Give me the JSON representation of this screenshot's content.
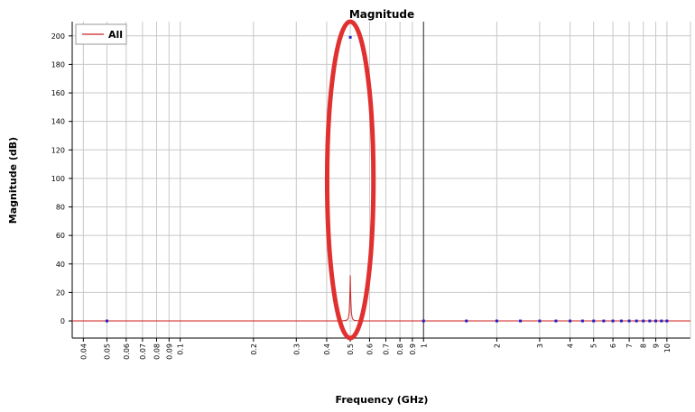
{
  "chart_data": {
    "type": "line",
    "title": "Magnitude",
    "xlabel": "Frequency (GHz)",
    "ylabel": "Magnitude (dB)",
    "x_scale": "log",
    "xlim": [
      0.036,
      12.5
    ],
    "ylim": [
      -12,
      210
    ],
    "x_ticks": [
      {
        "value": 0.04,
        "label": "0.04"
      },
      {
        "value": 0.05,
        "label": "0.05"
      },
      {
        "value": 0.06,
        "label": "0.06"
      },
      {
        "value": 0.07,
        "label": "0.07"
      },
      {
        "value": 0.08,
        "label": "0.08"
      },
      {
        "value": 0.09,
        "label": "0.09"
      },
      {
        "value": 0.1,
        "label": "0.1"
      },
      {
        "value": 0.2,
        "label": "0.2"
      },
      {
        "value": 0.3,
        "label": "0.3"
      },
      {
        "value": 0.4,
        "label": "0.4"
      },
      {
        "value": 0.5,
        "label": "0.5"
      },
      {
        "value": 0.6,
        "label": "0.6"
      },
      {
        "value": 0.7,
        "label": "0.7"
      },
      {
        "value": 0.8,
        "label": "0.8"
      },
      {
        "value": 0.9,
        "label": "0.9"
      },
      {
        "value": 1,
        "label": "1"
      },
      {
        "value": 2,
        "label": "2"
      },
      {
        "value": 3,
        "label": "3"
      },
      {
        "value": 4,
        "label": "4"
      },
      {
        "value": 5,
        "label": "5"
      },
      {
        "value": 6,
        "label": "6"
      },
      {
        "value": 7,
        "label": "7"
      },
      {
        "value": 8,
        "label": "8"
      },
      {
        "value": 9,
        "label": "9"
      },
      {
        "value": 10,
        "label": "10"
      }
    ],
    "y_ticks": [
      0,
      20,
      40,
      60,
      80,
      100,
      120,
      140,
      160,
      180,
      200
    ],
    "grid": true,
    "legend": {
      "position": "top-left",
      "entries": [
        "All"
      ]
    },
    "series": [
      {
        "name": "All",
        "color": "#cc2222",
        "line": [
          [
            0.036,
            0
          ],
          [
            0.46,
            0
          ],
          [
            0.48,
            0.3
          ],
          [
            0.49,
            1.5
          ],
          [
            0.495,
            6
          ],
          [
            0.4985,
            20
          ],
          [
            0.5,
            32
          ],
          [
            0.5015,
            20
          ],
          [
            0.505,
            6
          ],
          [
            0.51,
            1.5
          ],
          [
            0.52,
            0.3
          ],
          [
            0.55,
            0
          ],
          [
            12.5,
            0
          ]
        ]
      }
    ],
    "markers": {
      "color": "#2222cc",
      "points": [
        [
          0.05,
          0
        ],
        [
          0.5,
          199
        ],
        [
          1,
          0
        ],
        [
          1.5,
          0
        ],
        [
          2,
          0
        ],
        [
          2.5,
          0
        ],
        [
          3,
          0
        ],
        [
          3.5,
          0
        ],
        [
          4,
          0
        ],
        [
          4.5,
          0
        ],
        [
          5,
          0
        ],
        [
          5.5,
          0
        ],
        [
          6,
          0
        ],
        [
          6.5,
          0
        ],
        [
          7,
          0
        ],
        [
          7.5,
          0
        ],
        [
          8,
          0
        ],
        [
          8.5,
          0
        ],
        [
          9,
          0
        ],
        [
          9.5,
          0
        ],
        [
          10,
          0
        ]
      ]
    },
    "highlight": {
      "shape": "ellipse",
      "color": "#e03030",
      "center": [
        0.5,
        99
      ],
      "x_range": [
        0.4,
        0.62
      ],
      "y_range": [
        -12,
        210
      ]
    },
    "reference_line_x": 1
  }
}
